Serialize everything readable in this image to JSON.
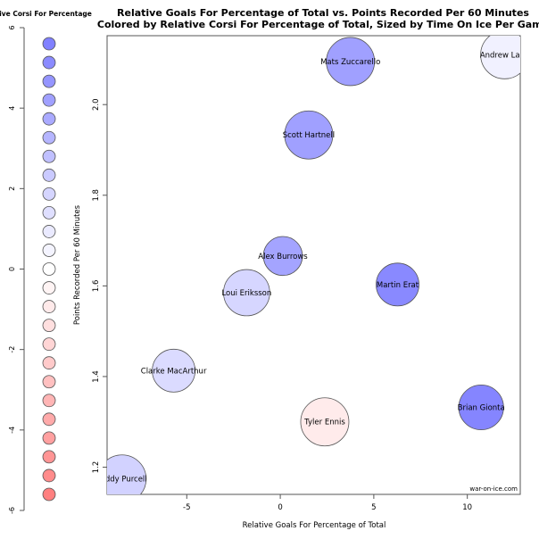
{
  "chart_data": {
    "type": "scatter",
    "title": "Relative Goals For Percentage of Total vs. Points Recorded Per 60 Minutes",
    "subtitle": "Colored by Relative Corsi For Percentage of Total, Sized by Time On Ice Per Game",
    "xlabel": "Relative Goals For Percentage of Total",
    "ylabel": "Points Recorded Per 60 Minutes",
    "xlim": [
      -9.26,
      12.83
    ],
    "ylim": [
      1.14,
      2.152
    ],
    "x_ticks": [
      -5,
      0,
      5,
      10
    ],
    "y_ticks": [
      1.2,
      1.4,
      1.6,
      1.8,
      2.0
    ],
    "x_tick_labels": [
      "-5",
      "0",
      "5",
      "10"
    ],
    "y_tick_labels": [
      "1.2",
      "1.4",
      "1.6",
      "1.8",
      "2.0"
    ],
    "grid": false,
    "watermark": "war-on-ice.com",
    "colors": {
      "positive": "#8080ff",
      "neutral": "#ffffff",
      "negative": "#ff8080",
      "outline": "#555555"
    },
    "points": [
      {
        "name": "Mats Zuccarello",
        "x": 3.75,
        "y": 2.095,
        "color_value": 4.2,
        "size_rel": 1.0
      },
      {
        "name": "Andrew Ladd",
        "x": 12.0,
        "y": 2.11,
        "color_value": 0.6,
        "size_rel": 1.0
      },
      {
        "name": "Scott Hartnell",
        "x": 1.52,
        "y": 1.933,
        "color_value": 4.2,
        "size_rel": 1.0
      },
      {
        "name": "Alex Burrows",
        "x": 0.14,
        "y": 1.666,
        "color_value": 4.0,
        "size_rel": 0.81
      },
      {
        "name": "Martin Erat",
        "x": 6.27,
        "y": 1.603,
        "color_value": 5.2,
        "size_rel": 0.89
      },
      {
        "name": "Loui Eriksson",
        "x": -1.8,
        "y": 1.585,
        "color_value": 1.8,
        "size_rel": 0.96
      },
      {
        "name": "Clarke MacArthur",
        "x": -5.7,
        "y": 1.413,
        "color_value": 1.6,
        "size_rel": 0.89
      },
      {
        "name": "Tyler Ennis",
        "x": 2.38,
        "y": 1.3,
        "color_value": -0.9,
        "size_rel": 1.0
      },
      {
        "name": "Brian Gionta",
        "x": 10.74,
        "y": 1.332,
        "color_value": 5.4,
        "size_rel": 0.93
      },
      {
        "name": "Teddy Purcell",
        "x": -8.46,
        "y": 1.174,
        "color_value": 2.0,
        "size_rel": 1.0
      }
    ],
    "legend": {
      "title": "Relative Corsi For Percentage",
      "placement": "left",
      "range": [
        -6,
        6
      ],
      "ticks": [
        -6,
        -4,
        -2,
        0,
        2,
        4,
        6
      ],
      "tick_labels": [
        "-6",
        "-4",
        "-2",
        "0",
        "2",
        "4",
        "6"
      ],
      "swatch_min": -5.6,
      "swatch_max": 5.6,
      "swatch_count": 25
    }
  }
}
